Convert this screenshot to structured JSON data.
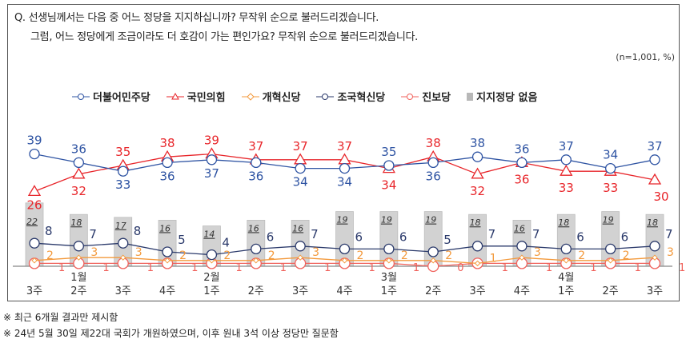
{
  "question": {
    "line1": "Q. 선생님께서는 다음 중 어느 정당을 지지하십니까? 무작위 순으로 불러드리겠습니다.",
    "line2": "그럼, 어느 정당에게 조금이라도 더 호감이 가는 편인가요? 무작위 순으로 불러드리겠습니다."
  },
  "sample_note": "(n=1,001, %)",
  "footnotes": [
    "※ 최근 6개월 결과만 제시함",
    "※ 24년 5월 30일 제22대 국회가 개원하였으며, 이후 원내 3석 이상 정당만 질문함"
  ],
  "chart_data": {
    "type": "line",
    "title": "",
    "legend_position": "top",
    "grid": false,
    "ylim": [
      0,
      45
    ],
    "x_week_labels": [
      "3주",
      "2주",
      "3주",
      "4주",
      "1주",
      "2주",
      "3주",
      "4주",
      "1주",
      "2주",
      "3주",
      "4주",
      "1주",
      "2주",
      "3주"
    ],
    "x_month_labels": [
      "",
      "1월",
      "",
      "",
      "2월",
      "",
      "",
      "",
      "3월",
      "",
      "",
      "",
      "4월",
      "",
      ""
    ],
    "series": [
      {
        "name": "더불어민주당",
        "color": "#2f54a3",
        "marker": "circle",
        "values": [
          39,
          36,
          33,
          36,
          37,
          36,
          34,
          34,
          35,
          36,
          38,
          36,
          37,
          34,
          37
        ]
      },
      {
        "name": "국민의힘",
        "color": "#e8262b",
        "marker": "triangle",
        "values": [
          26,
          32,
          35,
          38,
          39,
          37,
          37,
          37,
          34,
          38,
          32,
          36,
          33,
          33,
          30
        ]
      },
      {
        "name": "개혁신당",
        "color": "#f39a3d",
        "marker": "diamond",
        "values": [
          2,
          3,
          3,
          2,
          2,
          2,
          3,
          2,
          2,
          2,
          1,
          3,
          2,
          2,
          3
        ]
      },
      {
        "name": "조국혁신당",
        "color": "#2b3a6b",
        "marker": "circle",
        "values": [
          8,
          7,
          8,
          5,
          4,
          6,
          7,
          6,
          6,
          5,
          7,
          7,
          6,
          6,
          7
        ]
      },
      {
        "name": "진보당",
        "color": "#f0625c",
        "marker": "circle",
        "values": [
          1,
          1,
          1,
          1,
          1,
          1,
          1,
          1,
          1,
          0,
          1,
          1,
          1,
          1,
          1
        ]
      },
      {
        "name": "지지정당 없음",
        "color": "#c8c8c8",
        "type": "bar",
        "values": [
          22,
          18,
          17,
          16,
          14,
          16,
          16,
          19,
          19,
          19,
          18,
          16,
          18,
          19,
          18
        ]
      }
    ]
  }
}
